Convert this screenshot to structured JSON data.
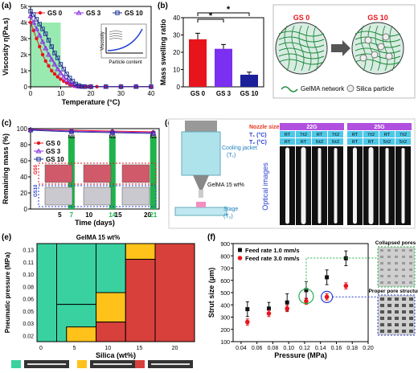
{
  "colors": {
    "gs0": "#e8141c",
    "gs3": "#8a2be2",
    "gs10": "#1d2f8f",
    "green": "#2ec27e",
    "orange": "#ffc21a",
    "red": "#d7403b",
    "teal": "#3ad1a1"
  },
  "panels": {
    "a": "(a)",
    "b": "(b)",
    "c": "(c)",
    "d": "(d)",
    "e": "(e)",
    "f": "(f)"
  },
  "legend3": [
    "GS 0",
    "GS 3",
    "GS 10"
  ],
  "chart_data": [
    {
      "id": "a",
      "type": "line",
      "xlabel": "Temperature (°C)",
      "ylabel": "Viscosity η(Pa.s)",
      "xlim": [
        0,
        40
      ],
      "ylim": [
        0,
        5000
      ],
      "xticks": [
        "0",
        "10",
        "20",
        "30",
        "40"
      ],
      "yticks": [
        "0",
        "1000",
        "2000",
        "3000",
        "4000",
        "5000"
      ],
      "ytick_labels": [
        "0",
        "1k",
        "2k",
        "3k",
        "4k",
        "5k"
      ],
      "highlight": [
        0,
        10
      ],
      "inset": {
        "xlabel": "Particle content",
        "ylabel": "Viscosity"
      },
      "series": [
        {
          "name": "GS 0",
          "x": [
            0,
            1,
            2,
            3,
            4,
            5,
            6,
            7,
            8,
            9,
            10,
            11,
            12,
            13,
            14,
            15,
            16,
            17,
            18,
            19,
            20,
            22,
            25,
            30,
            35,
            40
          ],
          "y": [
            4000,
            3500,
            3000,
            2500,
            2000,
            1600,
            1300,
            1000,
            800,
            620,
            480,
            350,
            240,
            150,
            80,
            40,
            15,
            10,
            10,
            10,
            10,
            10,
            10,
            10,
            10,
            10
          ]
        },
        {
          "name": "GS 3",
          "x": [
            0,
            1,
            2,
            3,
            4,
            5,
            6,
            7,
            8,
            9,
            10,
            11,
            12,
            13,
            14,
            15,
            16,
            17,
            18,
            20,
            25,
            30,
            35,
            40
          ],
          "y": [
            4400,
            4000,
            3600,
            3200,
            2800,
            2400,
            2000,
            1700,
            1400,
            1100,
            850,
            600,
            420,
            260,
            140,
            60,
            20,
            10,
            10,
            10,
            10,
            10,
            10,
            10
          ]
        },
        {
          "name": "GS 10",
          "x": [
            0,
            1,
            2,
            3,
            4,
            5,
            6,
            7,
            8,
            9,
            10,
            11,
            12,
            13,
            14,
            15,
            16,
            17,
            18,
            20,
            25,
            30,
            35,
            40
          ],
          "y": [
            4700,
            4500,
            4200,
            3900,
            3600,
            3300,
            2900,
            2500,
            2100,
            1800,
            1400,
            1100,
            800,
            550,
            350,
            180,
            80,
            20,
            10,
            10,
            10,
            10,
            10,
            10
          ]
        }
      ]
    },
    {
      "id": "b",
      "type": "bar",
      "ylabel": "Mass swelling ratio",
      "ylim": [
        0,
        40
      ],
      "yticks": [
        "0",
        "10",
        "20",
        "30",
        "40"
      ],
      "categories": [
        "GS 0",
        "GS 3",
        "GS 10"
      ],
      "values": [
        27.5,
        22,
        7
      ],
      "errors": [
        3.5,
        2.5,
        1.5
      ],
      "significance": [
        "*",
        "*"
      ]
    },
    {
      "id": "c",
      "type": "line",
      "xlabel": "Time (days)",
      "ylabel": "Remaining mass (%)",
      "xlim": [
        0,
        22
      ],
      "ylim": [
        0,
        100
      ],
      "xticks": [
        "5",
        "7",
        "10",
        "14",
        "15",
        "20",
        "21"
      ],
      "yticks": [
        "0",
        "20",
        "40",
        "60",
        "80",
        "100"
      ],
      "ns": [
        "NS",
        "NS",
        "NS"
      ],
      "series": [
        {
          "name": "GS 0",
          "x": [
            0,
            7,
            14,
            21
          ],
          "y": [
            99,
            98,
            97,
            96
          ]
        },
        {
          "name": "GS 3",
          "x": [
            0,
            7,
            14,
            21
          ],
          "y": [
            99,
            97,
            96,
            95
          ]
        },
        {
          "name": "GS 10",
          "x": [
            0,
            7,
            14,
            21
          ],
          "y": [
            98,
            96,
            95,
            94
          ]
        }
      ],
      "image_labels": [
        "GS0",
        "GS10"
      ]
    },
    {
      "id": "e",
      "type": "heatmap",
      "title": "GelMA 15 wt%",
      "xlabel": "Silica (wt%)",
      "ylabel": "Pneumatic pressure (MPa)",
      "xticks": [
        "0",
        "5",
        "10",
        "15",
        "20"
      ],
      "yticks": [
        "0.02",
        "0.03",
        "0.05",
        "0.06",
        "0.08",
        "0.10",
        "0.11",
        "0.13"
      ],
      "legend": [
        "",
        "",
        ""
      ]
    },
    {
      "id": "f",
      "type": "scatter",
      "xlabel": "Pressure (MPa)",
      "ylabel": "Strut size (μm)",
      "xlim": [
        0.03,
        0.2
      ],
      "ylim": [
        100,
        900
      ],
      "xticks": [
        "0.04",
        "0.06",
        "0.08",
        "0.10",
        "0.12",
        "0.14",
        "0.16",
        "0.18",
        "0.20"
      ],
      "yticks": [
        "100",
        "200",
        "300",
        "400",
        "500",
        "600",
        "700",
        "800",
        "900"
      ],
      "series": [
        {
          "name": "Feed rate 1.0 mm/s",
          "x": [
            0.048,
            0.075,
            0.098,
            0.122,
            0.148,
            0.172
          ],
          "y": [
            365,
            370,
            420,
            520,
            625,
            780
          ],
          "err": [
            60,
            50,
            70,
            70,
            60,
            60
          ]
        },
        {
          "name": "Feed rate 3.0 mm/s",
          "x": [
            0.048,
            0.075,
            0.098,
            0.122,
            0.148,
            0.172
          ],
          "y": [
            260,
            330,
            370,
            430,
            465,
            555
          ],
          "err": [
            25,
            25,
            25,
            25,
            25,
            25
          ]
        }
      ],
      "insets": [
        "Collapsed pores",
        "Proper pore structure"
      ]
    }
  ],
  "schematic": {
    "left": "GS 0",
    "right": "GS 10",
    "legend_network": "GelMA network",
    "legend_particle": "Silica particle"
  },
  "panel_d": {
    "cooling": "Cooling jacket",
    "cooling_t": "(T₁)",
    "gelma": "GelMA 15 wt%",
    "stage": "Stage",
    "stage_t": "(T₂)",
    "nozzle_label": "Nozzle size",
    "t1_label": "T₁ (°C)",
    "t2_label": "T₂ (°C)",
    "optical": "Optical images",
    "nozzles": [
      "22G",
      "25G"
    ],
    "t1": [
      "RT",
      "7±2",
      "RT",
      "7±2",
      "RT",
      "7±2",
      "RT",
      "7±2"
    ],
    "t2": [
      "RT",
      "RT",
      "5±2",
      "5±2",
      "RT",
      "RT",
      "5±2",
      "5±2"
    ]
  }
}
